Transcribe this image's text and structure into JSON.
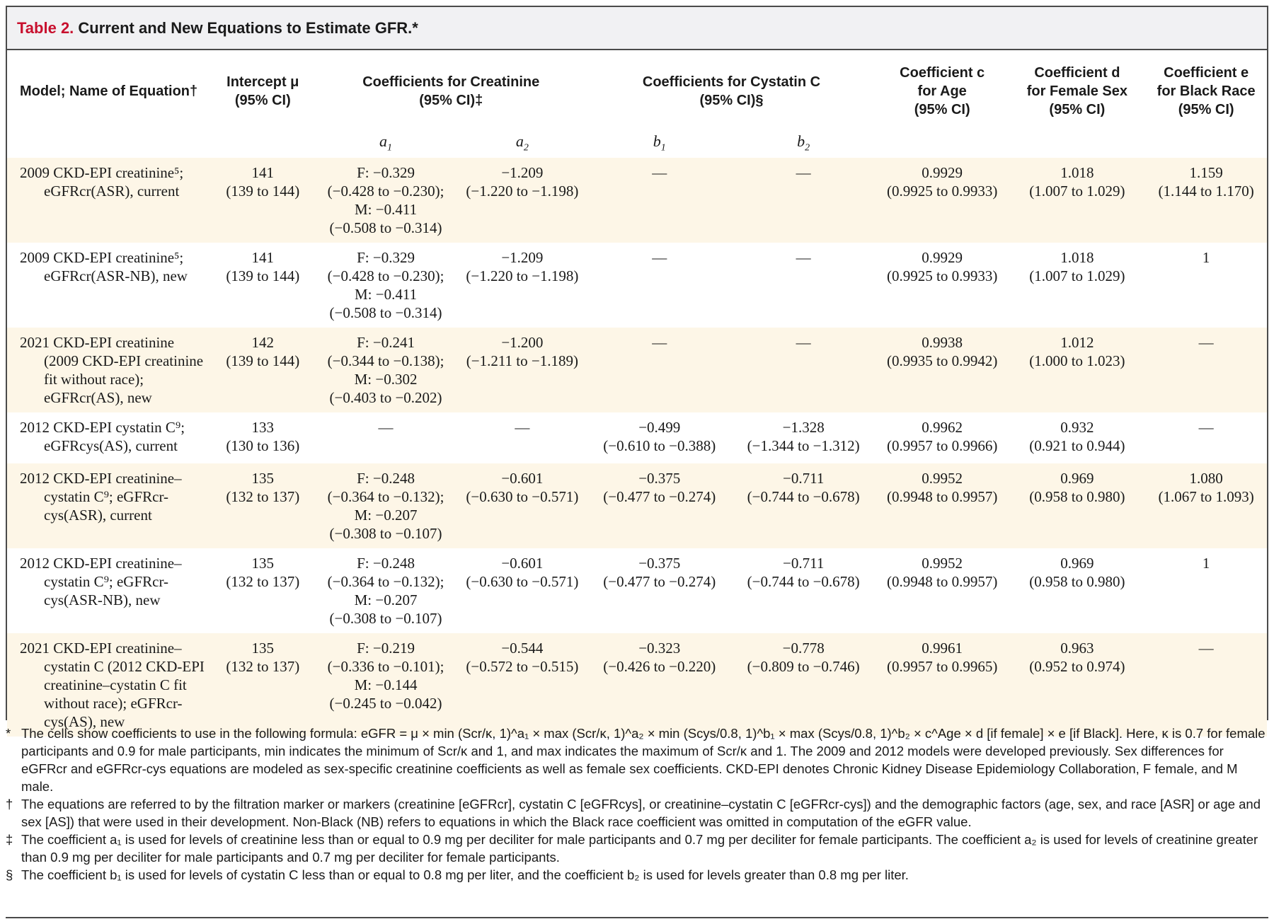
{
  "table": {
    "label": "Table 2.",
    "title": "Current and New Equations to Estimate GFR.*",
    "headers": {
      "model": "Model; Name of Equation†",
      "intercept": [
        "Intercept μ",
        "(95% CI)"
      ],
      "creatinine": [
        "Coefficients for Creatinine",
        "(95% CI)‡"
      ],
      "cystatin": [
        "Coefficients for Cystatin C",
        "(95% CI)§"
      ],
      "age": [
        "Coefficient c",
        "for Age",
        "(95% CI)"
      ],
      "female": [
        "Coefficient d",
        "for Female Sex",
        "(95% CI)"
      ],
      "black": [
        "Coefficient e",
        "for Black Race",
        "(95% CI)"
      ],
      "sub": {
        "a1": "a",
        "a1_sub": "1",
        "a2": "a",
        "a2_sub": "2",
        "b1": "b",
        "b1_sub": "1",
        "b2": "b",
        "b2_sub": "2"
      }
    },
    "rows": [
      {
        "model": [
          "2009 CKD-EPI creatinine⁵;",
          "eGFRcr(ASR), current"
        ],
        "mu": [
          "141",
          "(139 to 144)"
        ],
        "a1": [
          "F: −0.329",
          "(−0.428 to −0.230);",
          "M: −0.411",
          "(−0.508 to −0.314)"
        ],
        "a2": [
          "−1.209",
          "(−1.220 to −1.198)"
        ],
        "b1": [
          "—"
        ],
        "b2": [
          "—"
        ],
        "c": [
          "0.9929",
          "(0.9925 to 0.9933)"
        ],
        "d": [
          "1.018",
          "(1.007 to 1.029)"
        ],
        "e": [
          "1.159",
          "(1.144 to 1.170)"
        ]
      },
      {
        "model": [
          "2009 CKD-EPI creatinine⁵;",
          "eGFRcr(ASR-NB), new"
        ],
        "mu": [
          "141",
          "(139 to 144)"
        ],
        "a1": [
          "F: −0.329",
          "(−0.428 to −0.230);",
          "M: −0.411",
          "(−0.508 to −0.314)"
        ],
        "a2": [
          "−1.209",
          "(−1.220 to −1.198)"
        ],
        "b1": [
          "—"
        ],
        "b2": [
          "—"
        ],
        "c": [
          "0.9929",
          "(0.9925 to 0.9933)"
        ],
        "d": [
          "1.018",
          "(1.007 to 1.029)"
        ],
        "e": [
          "1"
        ]
      },
      {
        "model": [
          "2021 CKD-EPI creatinine",
          "(2009 CKD-EPI creatinine",
          "fit without race);",
          "eGFRcr(AS), new"
        ],
        "mu": [
          "142",
          "(139 to 144)"
        ],
        "a1": [
          "F: −0.241",
          "(−0.344 to −0.138);",
          "M: −0.302",
          "(−0.403 to −0.202)"
        ],
        "a2": [
          "−1.200",
          "(−1.211 to −1.189)"
        ],
        "b1": [
          "—"
        ],
        "b2": [
          "—"
        ],
        "c": [
          "0.9938",
          "(0.9935 to 0.9942)"
        ],
        "d": [
          "1.012",
          "(1.000 to 1.023)"
        ],
        "e": [
          "—"
        ]
      },
      {
        "model": [
          "2012 CKD-EPI cystatin C⁹;",
          "eGFRcys(AS), current"
        ],
        "mu": [
          "133",
          "(130 to 136)"
        ],
        "a1": [
          "—"
        ],
        "a2": [
          "—"
        ],
        "b1": [
          "−0.499",
          "(−0.610 to −0.388)"
        ],
        "b2": [
          "−1.328",
          "(−1.344 to −1.312)"
        ],
        "c": [
          "0.9962",
          "(0.9957 to 0.9966)"
        ],
        "d": [
          "0.932",
          "(0.921 to 0.944)"
        ],
        "e": [
          "—"
        ]
      },
      {
        "model": [
          "2012 CKD-EPI creatinine–",
          "cystatin C⁹; eGFRcr-",
          "cys(ASR), current"
        ],
        "mu": [
          "135",
          "(132 to 137)"
        ],
        "a1": [
          "F: −0.248",
          "(−0.364 to −0.132);",
          "M: −0.207",
          "(−0.308 to −0.107)"
        ],
        "a2": [
          "−0.601",
          "(−0.630 to −0.571)"
        ],
        "b1": [
          "−0.375",
          "(−0.477 to −0.274)"
        ],
        "b2": [
          "−0.711",
          "(−0.744 to −0.678)"
        ],
        "c": [
          "0.9952",
          "(0.9948 to 0.9957)"
        ],
        "d": [
          "0.969",
          "(0.958 to 0.980)"
        ],
        "e": [
          "1.080",
          "(1.067 to 1.093)"
        ]
      },
      {
        "model": [
          "2012 CKD-EPI creatinine–",
          "cystatin C⁹; eGFRcr-",
          "cys(ASR-NB), new"
        ],
        "mu": [
          "135",
          "(132 to 137)"
        ],
        "a1": [
          "F: −0.248",
          "(−0.364 to −0.132);",
          "M: −0.207",
          "(−0.308 to −0.107)"
        ],
        "a2": [
          "−0.601",
          "(−0.630 to −0.571)"
        ],
        "b1": [
          "−0.375",
          "(−0.477 to −0.274)"
        ],
        "b2": [
          "−0.711",
          "(−0.744 to −0.678)"
        ],
        "c": [
          "0.9952",
          "(0.9948 to 0.9957)"
        ],
        "d": [
          "0.969",
          "(0.958 to 0.980)"
        ],
        "e": [
          "1"
        ]
      },
      {
        "model": [
          "2021 CKD-EPI creatinine–",
          "cystatin C (2012 CKD-EPI",
          "creatinine–cystatin C fit",
          "without race); eGFRcr-",
          "cys(AS), new"
        ],
        "mu": [
          "135",
          "(132 to 137)"
        ],
        "a1": [
          "F: −0.219",
          "(−0.336 to −0.101);",
          "M: −0.144",
          "(−0.245 to −0.042)"
        ],
        "a2": [
          "−0.544",
          "(−0.572 to −0.515)"
        ],
        "b1": [
          "−0.323",
          "(−0.426 to −0.220)"
        ],
        "b2": [
          "−0.778",
          "(−0.809 to −0.746)"
        ],
        "c": [
          "0.9961",
          "(0.9957 to 0.9965)"
        ],
        "d": [
          "0.963",
          "(0.952 to 0.974)"
        ],
        "e": [
          "—"
        ]
      }
    ]
  },
  "footnotes": [
    {
      "marker": "*",
      "text": "The cells show coefficients to use in the following formula: eGFR = μ × min (Scr/κ, 1)^a₁ × max (Scr/κ, 1)^a₂ × min (Scys/0.8, 1)^b₁ × max (Scys/0.8, 1)^b₂ × c^Age × d [if female] × e [if Black]. Here, κ is 0.7 for female participants and 0.9 for male participants, min indicates the minimum of Scr/κ and 1, and max indicates the maximum of Scr/κ and 1. The 2009 and 2012 models were developed previously. Sex differences for eGFRcr and eGFRcr-cys equations are modeled as sex-specific creatinine coefficients as well as female sex coefficients. CKD-EPI denotes Chronic Kidney Disease Epidemiology Collaboration, F female, and M male."
    },
    {
      "marker": "†",
      "text": "The equations are referred to by the filtration marker or markers (creatinine [eGFRcr], cystatin C [eGFRcys], or creatinine–cystatin C [eGFRcr-cys]) and the demographic factors (age, sex, and race [ASR] or age and sex [AS]) that were used in their development. Non-Black (NB) refers to equations in which the Black race coefficient was omitted in computation of the eGFR value."
    },
    {
      "marker": "‡",
      "text": "The coefficient a₁ is used for levels of creatinine less than or equal to 0.9 mg per deciliter for male participants and 0.7 mg per deciliter for female participants. The coefficient a₂ is used for levels of creatinine greater than 0.9 mg per deciliter for male participants and 0.7 mg per deciliter for female participants."
    },
    {
      "marker": "§",
      "text": "The coefficient b₁ is used for levels of cystatin C less than or equal to 0.8 mg per liter, and the coefficient b₂ is used for levels greater than 0.8 mg per liter."
    }
  ]
}
